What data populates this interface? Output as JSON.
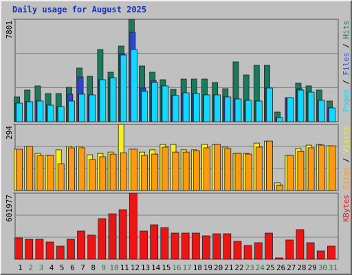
{
  "title": "Daily usage for August 2025",
  "chart_data": [
    {
      "type": "bar",
      "ylim": [
        0,
        7801
      ],
      "yticks": [
        7801
      ],
      "legend_separator": " / ",
      "series": [
        {
          "name": "Hits",
          "color": "#1a7a5e",
          "values": [
            1885,
            2409,
            2723,
            2147,
            2147,
            2618,
            4084,
            3456,
            5498,
            3770,
            5760,
            7801,
            4241,
            3770,
            3194,
            2461,
            3246,
            3246,
            3246,
            2985,
            2513,
            4555,
            3560,
            4294,
            4294,
            733,
            1833,
            2932,
            2723,
            2409,
            1571
          ]
        },
        {
          "name": "Files",
          "color": "#2848d0",
          "values": [
            1414,
            1518,
            1571,
            1257,
            1152,
            2094,
            3403,
            2042,
            3194,
            3351,
            5184,
            6807,
            2566,
            3142,
            2723,
            1990,
            2199,
            2147,
            2042,
            2042,
            1885,
            1728,
            1623,
            1571,
            2566,
            314,
            1833,
            2513,
            2251,
            1623,
            1047
          ]
        },
        {
          "name": "Pages",
          "color": "#10d8ff",
          "values": [
            1414,
            1518,
            1571,
            1257,
            1152,
            1571,
            2094,
            2042,
            3194,
            3351,
            5079,
            5498,
            2304,
            2985,
            2723,
            1990,
            2199,
            2147,
            2042,
            2042,
            1885,
            1728,
            1623,
            1571,
            2566,
            314,
            1833,
            2409,
            2251,
            1623,
            1047
          ]
        }
      ]
    },
    {
      "type": "bar",
      "ylim": [
        0,
        294
      ],
      "yticks": [
        294
      ],
      "legend_separator": " / ",
      "series": [
        {
          "name": "Visits",
          "color": "#f8f018",
          "values": [
            184,
            196,
            165,
            156,
            181,
            196,
            196,
            159,
            165,
            171,
            294,
            184,
            171,
            181,
            205,
            205,
            181,
            181,
            205,
            205,
            193,
            165,
            165,
            211,
            220,
            34,
            156,
            187,
            202,
            205,
            199
          ]
        },
        {
          "name": "Sites",
          "color": "#ff9a10",
          "values": [
            184,
            196,
            156,
            156,
            119,
            190,
            190,
            138,
            150,
            162,
            168,
            184,
            156,
            162,
            193,
            171,
            171,
            177,
            190,
            205,
            187,
            165,
            162,
            193,
            220,
            24,
            156,
            174,
            190,
            202,
            199
          ]
        }
      ]
    },
    {
      "type": "bar",
      "ylim": [
        0,
        601977
      ],
      "yticks": [
        601977
      ],
      "categories": [
        "1",
        "2",
        "3",
        "4",
        "5",
        "6",
        "7",
        "8",
        "9",
        "10",
        "11",
        "12",
        "13",
        "14",
        "15",
        "16",
        "17",
        "18",
        "19",
        "20",
        "21",
        "22",
        "23",
        "24",
        "25",
        "26",
        "27",
        "28",
        "29",
        "30",
        "31"
      ],
      "category_colors": [
        "#000000",
        "#208040",
        "#208040",
        "#000000",
        "#000000",
        "#000000",
        "#000000",
        "#000000",
        "#208040",
        "#208040",
        "#000000",
        "#000000",
        "#000000",
        "#000000",
        "#000000",
        "#208040",
        "#208040",
        "#000000",
        "#000000",
        "#000000",
        "#000000",
        "#000000",
        "#208040",
        "#208040",
        "#000000",
        "#000000",
        "#000000",
        "#000000",
        "#000000",
        "#208040",
        "#208040"
      ],
      "series": [
        {
          "name": "KBytes",
          "color": "#ee1414",
          "values": [
            194370,
            181830,
            181830,
            156750,
            119130,
            181830,
            257070,
            219450,
            369930,
            413820,
            451440,
            601977,
            257070,
            313500,
            288420,
            238260,
            238260,
            238260,
            213180,
            231990,
            231990,
            163020,
            125400,
            150480,
            238260,
            12540,
            175560,
            269610,
            150480,
            75240,
            119130
          ]
        }
      ]
    }
  ]
}
